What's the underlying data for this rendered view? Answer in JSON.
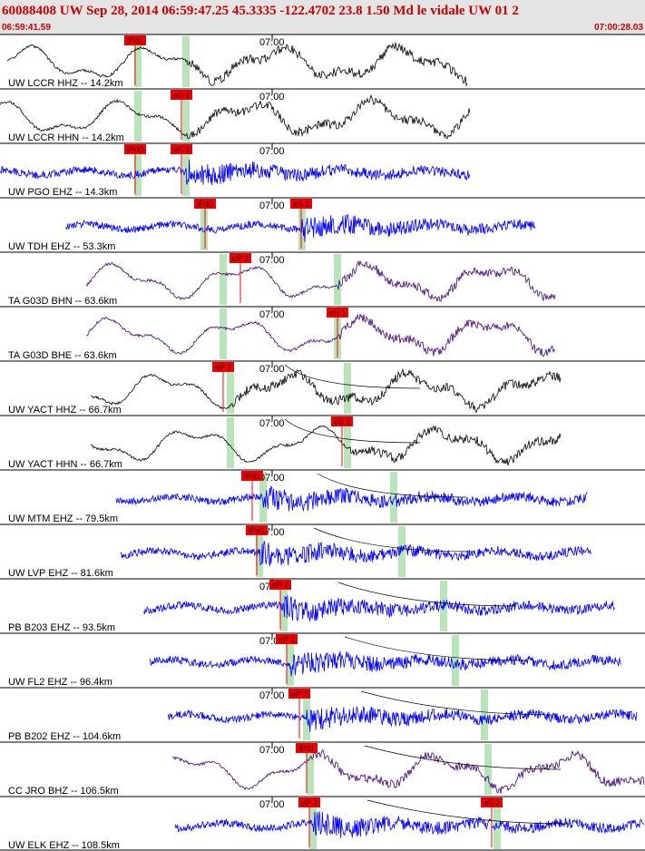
{
  "header": {
    "title": "60088408 UW Sep 28, 2014 06:59:47.25   45.3335 -122.4702 23.8 1.50 Md le vidale UW 01   2",
    "start_time": "06:59:41.59",
    "end_time": "07:00:28.03"
  },
  "traces": [
    {
      "label": "UW LCCR HHZ -- 14.2km",
      "time_mark": "07:00",
      "color": "#000000",
      "picks": [
        "iPd1"
      ]
    },
    {
      "label": "UW LCCR HHN -- 14.2km",
      "time_mark": "07:00",
      "color": "#000000",
      "picks": [
        "eS 2"
      ]
    },
    {
      "label": "UW PGO EHZ -- 14.3km",
      "time_mark": "07:00",
      "color": "#0000ff",
      "picks": [
        "iPd0",
        "eS 2"
      ]
    },
    {
      "label": "UW TDH EHZ -- 53.3km",
      "time_mark": "07:00",
      "color": "#0000ff",
      "picks": [
        "iPd0",
        "eS 1"
      ]
    },
    {
      "label": "TA G03D BHN -- 63.6km",
      "time_mark": "07:00",
      "color": "#400080",
      "picks": [
        "eP 2"
      ]
    },
    {
      "label": "TA G03D BHE -- 63.6km",
      "time_mark": "07:00",
      "color": "#400080",
      "picks": [
        "eS 1"
      ]
    },
    {
      "label": "UW YACT HHZ -- 66.7km",
      "time_mark": "07:00",
      "color": "#000000",
      "picks": [
        "eP 2"
      ]
    },
    {
      "label": "UW YACT HHN -- 66.7km",
      "time_mark": "07:00",
      "color": "#000000",
      "picks": [
        "eS 2"
      ]
    },
    {
      "label": "UW MTM EHZ -- 79.5km",
      "time_mark": "07:00",
      "color": "#0000ff",
      "picks": [
        "iPd1"
      ]
    },
    {
      "label": "UW LVP EHZ -- 81.6km",
      "time_mark": "07:00",
      "color": "#0000ff",
      "picks": [
        "iPd1"
      ]
    },
    {
      "label": "PB B203 EHZ -- 93.5km",
      "time_mark": "07:00",
      "color": "#0000ff",
      "picks": [
        "eP 2"
      ]
    },
    {
      "label": "UW FL2 EHZ -- 96.4km",
      "time_mark": "07:00",
      "color": "#0000ff",
      "picks": [
        "eP 2"
      ]
    },
    {
      "label": "PB B202 EHZ -- 104.6km",
      "time_mark": "07:00",
      "color": "#0000ff",
      "picks": [
        "eP 2"
      ]
    },
    {
      "label": "CC JRO BHZ -- 106.5km",
      "time_mark": "07:00",
      "color": "#400080",
      "picks": [
        "iPd1"
      ]
    },
    {
      "label": "UW ELK EHZ -- 108.5km",
      "time_mark": "07:00",
      "color": "#0000ff",
      "picks": [
        "eP 2",
        "eS 2"
      ]
    }
  ]
}
